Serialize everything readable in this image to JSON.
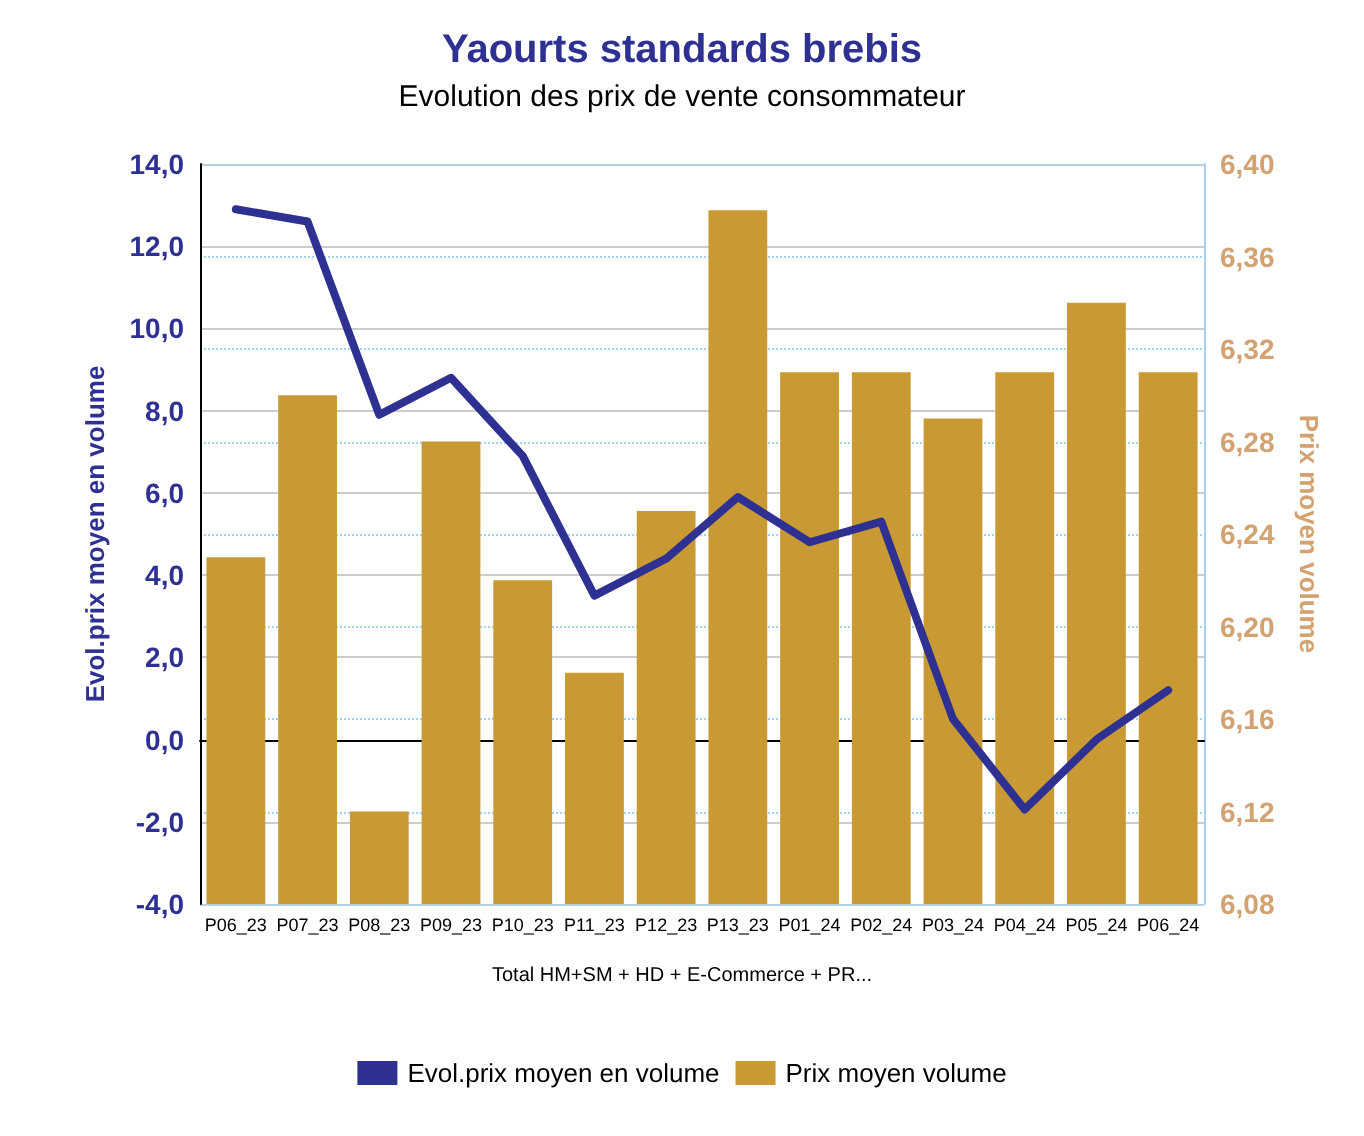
{
  "chart_data": {
    "type": "bar",
    "title": "Yaourts standards brebis",
    "subtitle": "Evolution des prix de vente consommateur",
    "ylabel": "Evol.prix moyen en volume",
    "y2label": "Prix moyen volume",
    "categories": [
      "P06_23",
      "P07_23",
      "P08_23",
      "P09_23",
      "P10_23",
      "P11_23",
      "P12_23",
      "P13_23",
      "P01_24",
      "P02_24",
      "P03_24",
      "P04_24",
      "P05_24",
      "P06_24"
    ],
    "series": [
      {
        "name": "Evol.prix moyen en volume",
        "type": "line",
        "color": "#2e3192",
        "values": [
          12.9,
          12.6,
          7.9,
          8.8,
          6.9,
          3.5,
          4.4,
          5.9,
          4.8,
          5.3,
          0.5,
          -1.7,
          0.0,
          1.2
        ]
      },
      {
        "name": "Prix moyen volume",
        "axis": "y2",
        "color": "#c99a33",
        "values": [
          6.23,
          6.3,
          6.12,
          6.28,
          6.22,
          6.18,
          6.25,
          6.38,
          6.31,
          6.31,
          6.29,
          6.31,
          6.34,
          6.31
        ]
      }
    ],
    "ylim": [
      -4,
      14
    ],
    "yticks": [
      {
        "value": -4,
        "label": "-4,0"
      },
      {
        "value": -2,
        "label": "-2,0"
      },
      {
        "value": 0,
        "label": "0,0"
      },
      {
        "value": 2,
        "label": "2,0"
      },
      {
        "value": 4,
        "label": "4,0"
      },
      {
        "value": 6,
        "label": "6,0"
      },
      {
        "value": 8,
        "label": "8,0"
      },
      {
        "value": 10,
        "label": "10,0"
      },
      {
        "value": 12,
        "label": "12,0"
      },
      {
        "value": 14,
        "label": "14,0"
      }
    ],
    "y2lim": [
      6.08,
      6.4
    ],
    "y2ticks": [
      {
        "value": 6.08,
        "label": "6,08"
      },
      {
        "value": 6.12,
        "label": "6,12"
      },
      {
        "value": 6.16,
        "label": "6,16"
      },
      {
        "value": 6.2,
        "label": "6,20"
      },
      {
        "value": 6.24,
        "label": "6,24"
      },
      {
        "value": 6.28,
        "label": "6,28"
      },
      {
        "value": 6.32,
        "label": "6,32"
      },
      {
        "value": 6.36,
        "label": "6,36"
      },
      {
        "value": 6.4,
        "label": "6,40"
      }
    ],
    "annotations": [
      "Total HM+SM + HD + E-Commerce + PR..."
    ],
    "grid": true,
    "legend": "bottom",
    "marker": "none",
    "line_style": "solid"
  }
}
